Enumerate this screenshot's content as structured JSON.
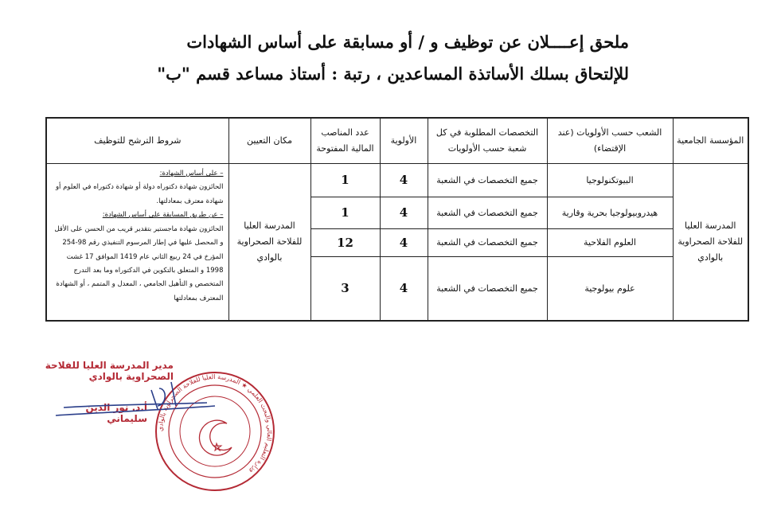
{
  "title": {
    "line1": "ملحق إعــــلان عن توظيف و / أو مسابقة على أساس الشهادات",
    "line2": "للإلتحاق بسلك الأساتذة المساعدين ، رتبة : أستاذ مساعد قسم \"ب\""
  },
  "table": {
    "headers": {
      "institution": "المؤسسة الجامعية",
      "branches": "الشعب حسب الأولويات (عند الإقتضاء)",
      "specialties": "التخصصات المطلوبة في كل شعبة حسب الأولويات",
      "priority": "الأولوية",
      "positions": "عدد المناصب المالية المفتوحة",
      "place": "مكان التعيين",
      "conditions": "شروط الترشح للتوظيف"
    },
    "institution": "المدرسة العليا للفلاحة الصحراوية بالوادي",
    "place": "المدرسة العليا للفلاحة الصحراوية بالوادي",
    "rows": [
      {
        "branch": "البيوتكنولوجيا",
        "specialty": "جميع التخصصات في الشعبة",
        "priority": "4",
        "positions": "1"
      },
      {
        "branch": "هيدروبيولوجيا بحرية وقارية",
        "specialty": "جميع التخصصات في الشعبة",
        "priority": "4",
        "positions": "1"
      },
      {
        "branch": "العلوم الفلاحية",
        "specialty": "جميع التخصصات في الشعبة",
        "priority": "4",
        "positions": "12"
      },
      {
        "branch": "علوم بيولوجية",
        "specialty": "جميع التخصصات في الشعبة",
        "priority": "4",
        "positions": "3"
      }
    ],
    "conditions": {
      "heading1": "– على أساس الشهادة:",
      "text1": "الحائزون شهادة دكتوراه دولة أو شهادة دكتوراه في العلوم أو شهادة معترف بمعادلتها.",
      "heading2": "– عن طريق المسابقة على أساس الشهادة:",
      "text2": "الحائزون شهادة ماجستير بتقدير قريب من الحسن على الأقل و المحصل عليها في إطار المرسوم التنفيذي رقم 98-254 المؤرخ في 24 ربيع الثاني عام 1419 الموافق 17 غشت 1998 و المتعلق بالتكوين في الدكتوراه وما بعد التدرج المتخصص و التأهيل الجامعي ، المعدل و المتمم ، أو الشهادة المعترف بمعادلتها"
    }
  },
  "signature": {
    "title": "مدير المدرسة العليا للفلاحة الصحراوية بالوادي",
    "name": "أ.د. نور الدين سليماني",
    "stamp_text": "وزارة التعليم العالي والبحث العلمي ★ المدرسة العليا للفلاحة الصحراوية بالوادي",
    "ink_color": "#b42a35",
    "pen_color": "#2b3f8a"
  }
}
